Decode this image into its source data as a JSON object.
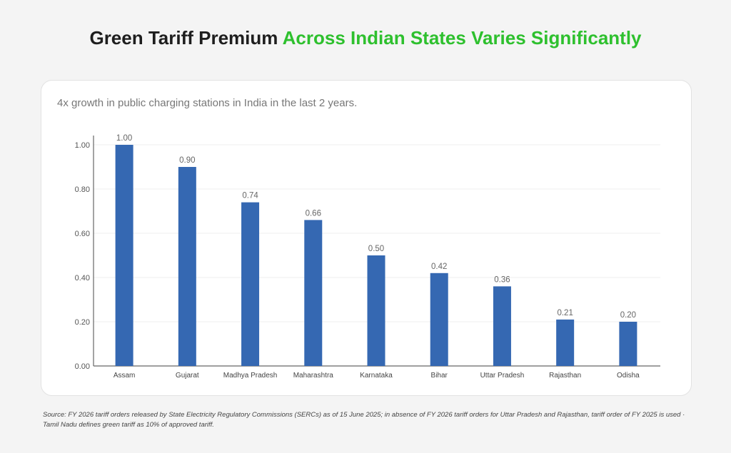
{
  "header": {
    "title_part1": "Green Tariff Premium ",
    "title_part2": "Across Indian States Varies Significantly"
  },
  "colors": {
    "accent": "#2ec02e",
    "bar": "#3568b2",
    "title": "#1e1e1e"
  },
  "chart_data": {
    "type": "bar",
    "title": "",
    "subtitle": "4x growth in public charging stations in India in the last 2 years.",
    "xlabel": "",
    "ylabel": "",
    "categories": [
      "Assam",
      "Gujarat",
      "Madhya Pradesh",
      "Maharashtra",
      "Karnataka",
      "Bihar",
      "Uttar Pradesh",
      "Rajasthan",
      "Odisha"
    ],
    "values": [
      1.0,
      0.9,
      0.74,
      0.66,
      0.5,
      0.42,
      0.36,
      0.21,
      0.2
    ],
    "data_labels": [
      "1.00",
      "0.90",
      "0.74",
      "0.66",
      "0.50",
      "0.42",
      "0.36",
      "0.21",
      "0.20"
    ],
    "yticks": [
      "0.00",
      "0.20",
      "0.40",
      "0.60",
      "0.80",
      "1.00"
    ],
    "ylim": [
      0,
      1.0
    ],
    "grid": true,
    "legend": "none"
  },
  "footer": {
    "source": "Source: FY 2026 tariff orders released by State Electricity Regulatory Commissions (SERCs) as of 15 June 2025; in absence of FY 2026 tariff orders for Uttar Pradesh and Rajasthan, tariff order of FY 2025 is used · Tamil Nadu defines green tariff as 10% of approved tariff."
  }
}
